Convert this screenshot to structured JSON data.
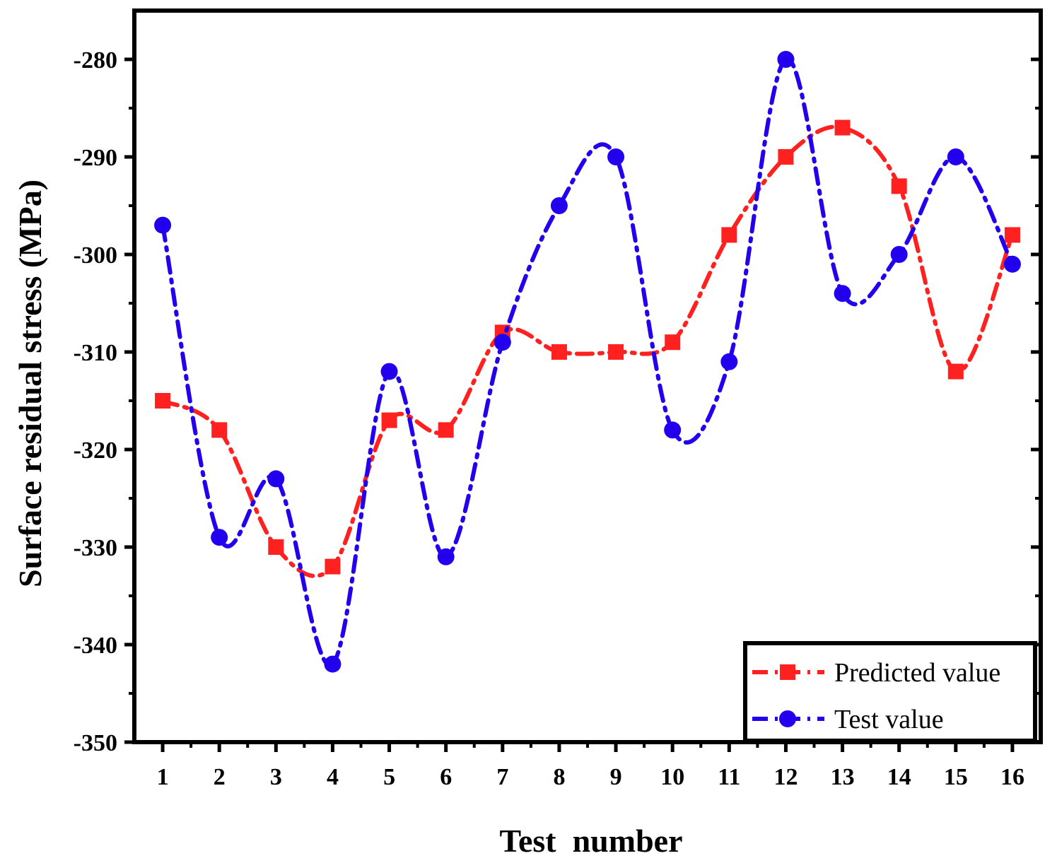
{
  "chart_data": {
    "type": "line",
    "xlabel": "Test  number",
    "ylabel": "Surface residual stress (MPa)",
    "x": [
      1,
      2,
      3,
      4,
      5,
      6,
      7,
      8,
      9,
      10,
      11,
      12,
      13,
      14,
      15,
      16
    ],
    "xlim": [
      0.5,
      16.5
    ],
    "ylim": [
      -350,
      -275
    ],
    "yticks": [
      -350,
      -340,
      -330,
      -320,
      -310,
      -300,
      -290,
      -280
    ],
    "grid": false,
    "legend": "bottom-right",
    "series": [
      {
        "name": "Predicted value",
        "marker": "square",
        "color": "#ff2020",
        "values": [
          -315,
          -318,
          -330,
          -332,
          -317,
          -318,
          -308,
          -310,
          -310,
          -309,
          -298,
          -290,
          -287,
          -293,
          -312,
          -298
        ]
      },
      {
        "name": "Test value",
        "marker": "circle",
        "color": "#2200ee",
        "values": [
          -297,
          -329,
          -323,
          -342,
          -312,
          -331,
          -309,
          -295,
          -290,
          -318,
          -311,
          -280,
          -304,
          -300,
          -290,
          -301
        ]
      }
    ]
  }
}
